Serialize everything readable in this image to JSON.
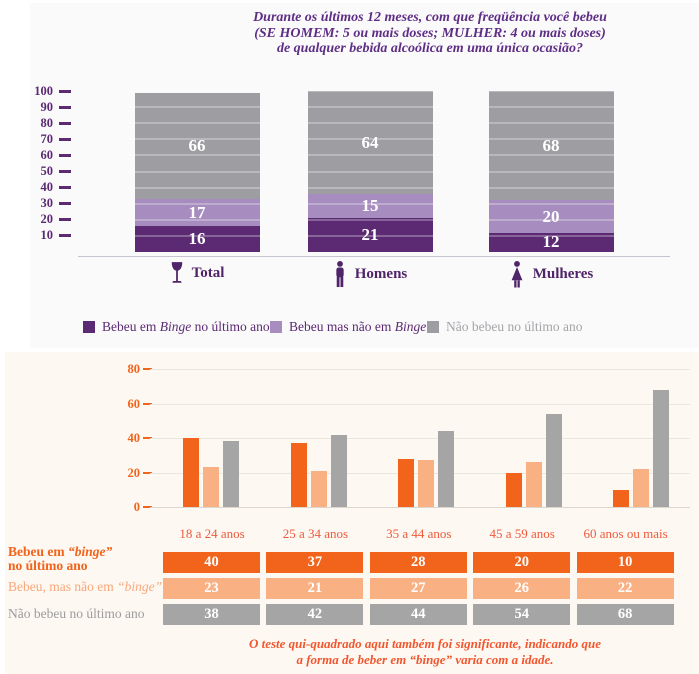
{
  "colors": {
    "dark_purple": "#5b2a72",
    "light_purple": "#a78cbf",
    "gray_top": "#9e9da2",
    "orange": "#f2641c",
    "light_orange": "#f9b183",
    "gray_bottom": "#a5a5a5",
    "top_panel_bg": "#fafafb",
    "bottom_panel_bg": "#fdf8f2",
    "title_purple": "#5e2d85",
    "age_label_orange": "#ef5a3c",
    "note_orange": "#f2562e"
  },
  "chart_data": [
    {
      "type": "bar",
      "subtype": "stacked",
      "title_lines": [
        "Durante os últimos 12 meses, com que freqüência você bebeu",
        "(SE HOMEM: 5 ou mais doses;  MULHER: 4 ou mais doses)",
        "de qualquer bebida alcoólica em uma única ocasião?"
      ],
      "categories": [
        "Total",
        "Homens",
        "Mulheres"
      ],
      "category_icons": [
        "wine-glass-icon",
        "man-icon",
        "woman-icon"
      ],
      "series": [
        {
          "name": "Bebeu em Binge no último ano",
          "color": "#5b2a72",
          "values": [
            16,
            21,
            12
          ]
        },
        {
          "name": "Bebeu mas não em Binge",
          "color": "#a78cbf",
          "values": [
            17,
            15,
            20
          ]
        },
        {
          "name": "Não bebeu no último ano",
          "color": "#9e9da2",
          "values": [
            66,
            64,
            68
          ]
        }
      ],
      "ylim": [
        0,
        100
      ],
      "y_ticks": [
        100,
        90,
        80,
        70,
        60,
        50,
        40,
        30,
        20,
        10
      ],
      "grid": true,
      "legend_position": "bottom",
      "legend": [
        {
          "pre": "Bebeu em ",
          "em": "Binge",
          "post": " no último ano",
          "swatch_color": "#5b2a72"
        },
        {
          "pre": "Bebeu mas não em ",
          "em": "Binge",
          "post": "",
          "swatch_color": "#a78cbf"
        },
        {
          "pre": "Não bebeu no último ano",
          "em": "",
          "post": "",
          "swatch_color": "#9e9da2"
        }
      ]
    },
    {
      "type": "bar",
      "subtype": "grouped",
      "categories": [
        "18 a 24 anos",
        "25 a 34 anos",
        "35 a 44 anos",
        "45 a 59 anos",
        "60 anos ou mais"
      ],
      "series": [
        {
          "name": "Bebeu em “binge” no último ano",
          "color": "#f2641c",
          "values": [
            40,
            37,
            28,
            20,
            10
          ]
        },
        {
          "name": "Bebeu, mas não em “binge”",
          "color": "#f9b183",
          "values": [
            23,
            21,
            27,
            26,
            22
          ]
        },
        {
          "name": "Não bebeu no último ano",
          "color": "#a5a5a5",
          "values": [
            38,
            42,
            44,
            54,
            68
          ]
        }
      ],
      "ylim": [
        0,
        80
      ],
      "y_ticks": [
        80,
        60,
        40,
        20,
        0
      ],
      "grid": true,
      "row_labels": [
        {
          "pre": "Bebeu em ",
          "em": "“binge”",
          "line2": "no último ano"
        },
        {
          "pre": "Bebeu, mas não em ",
          "em": "“binge”",
          "line2": ""
        },
        {
          "pre": "Não bebeu no último ano",
          "em": "",
          "line2": ""
        }
      ],
      "note_lines": [
        "O teste qui-quadrado aqui também foi significante, indicando que",
        "a forma de beber em “binge” varia com a idade."
      ]
    }
  ]
}
